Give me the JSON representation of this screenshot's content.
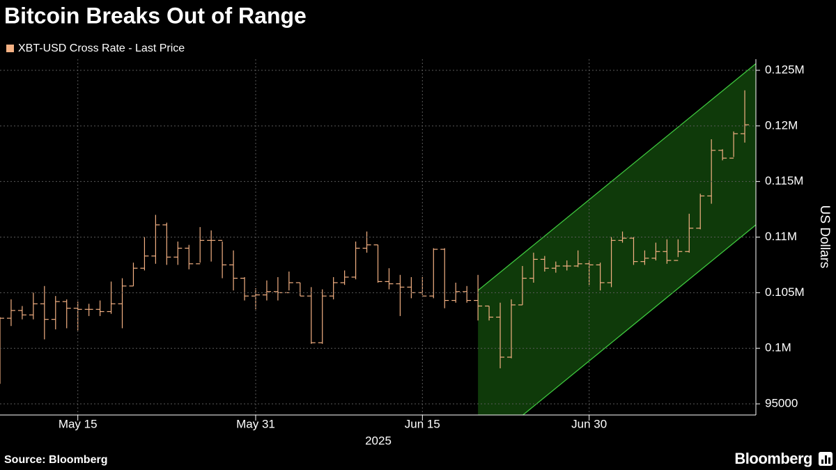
{
  "chart_data": {
    "type": "ohlc",
    "title": "Bitcoin Breaks Out of Range",
    "source": "Source: Bloomberg",
    "brand": "Bloomberg",
    "y_axis_label": "US Dollars",
    "x_year_label": "2025",
    "x": [
      "2025-05-08",
      "2025-05-09",
      "2025-05-10",
      "2025-05-11",
      "2025-05-12",
      "2025-05-13",
      "2025-05-14",
      "2025-05-15",
      "2025-05-16",
      "2025-05-17",
      "2025-05-18",
      "2025-05-19",
      "2025-05-20",
      "2025-05-21",
      "2025-05-22",
      "2025-05-23",
      "2025-05-24",
      "2025-05-25",
      "2025-05-26",
      "2025-05-27",
      "2025-05-28",
      "2025-05-29",
      "2025-05-30",
      "2025-05-31",
      "2025-06-01",
      "2025-06-02",
      "2025-06-03",
      "2025-06-04",
      "2025-06-05",
      "2025-06-06",
      "2025-06-07",
      "2025-06-08",
      "2025-06-09",
      "2025-06-10",
      "2025-06-11",
      "2025-06-12",
      "2025-06-13",
      "2025-06-14",
      "2025-06-15",
      "2025-06-16",
      "2025-06-17",
      "2025-06-18",
      "2025-06-19",
      "2025-06-20",
      "2025-06-21",
      "2025-06-22",
      "2025-06-23",
      "2025-06-24",
      "2025-06-25",
      "2025-06-26",
      "2025-06-27",
      "2025-06-28",
      "2025-06-29",
      "2025-06-30",
      "2025-07-01",
      "2025-07-02",
      "2025-07-03",
      "2025-07-04",
      "2025-07-05",
      "2025-07-06",
      "2025-07-07",
      "2025-07-08",
      "2025-07-09",
      "2025-07-10",
      "2025-07-11",
      "2025-07-12",
      "2025-07-13",
      "2025-07-14"
    ],
    "series": [
      {
        "name": "XBT-USD Cross Rate - Last Price",
        "color": "#f4b183",
        "open": [
          97000,
          102700,
          103400,
          103000,
          104000,
          102600,
          104200,
          103600,
          103500,
          103500,
          103300,
          104000,
          105600,
          107200,
          108300,
          111100,
          108200,
          109000,
          107600,
          109700,
          109700,
          107500,
          106300,
          104700,
          104800,
          105100,
          105000,
          105900,
          104700,
          100500,
          104700,
          105900,
          106400,
          109000,
          109300,
          106000,
          105800,
          105500,
          105000,
          104700,
          108900,
          104300,
          105100,
          104300,
          103800,
          102800,
          99200,
          103900,
          106300,
          108000,
          107200,
          107400,
          107400,
          107600,
          107500,
          105900,
          109700,
          109900,
          107800,
          108100,
          108700,
          107900,
          108700,
          110800,
          113700,
          117800,
          117100,
          119300
        ],
        "high": [
          102800,
          104400,
          103800,
          105000,
          105600,
          104700,
          104400,
          104200,
          104000,
          104300,
          106000,
          106300,
          107700,
          110000,
          112000,
          111300,
          109600,
          109300,
          110900,
          110600,
          109600,
          108800,
          106400,
          105400,
          106100,
          106400,
          106900,
          105900,
          105500,
          105300,
          106400,
          107000,
          109600,
          110500,
          109300,
          107200,
          106600,
          106400,
          106400,
          109000,
          109000,
          105900,
          105600,
          106600,
          103800,
          104100,
          104400,
          107400,
          108600,
          108300,
          107800,
          107900,
          108800,
          107900,
          107700,
          110000,
          110500,
          110000,
          108800,
          109500,
          109800,
          109800,
          112100,
          113900,
          118800,
          117900,
          119500,
          123200
        ],
        "low": [
          96800,
          102000,
          102600,
          102600,
          100800,
          101700,
          101800,
          101600,
          102900,
          102900,
          103100,
          101800,
          105600,
          107000,
          107600,
          107500,
          107500,
          107100,
          107700,
          107800,
          106300,
          105200,
          104300,
          103500,
          104300,
          104300,
          105200,
          104700,
          100400,
          100400,
          104400,
          105700,
          106200,
          108600,
          105900,
          105300,
          102900,
          104500,
          104800,
          104500,
          103600,
          104100,
          104100,
          102500,
          102500,
          98200,
          99100,
          103900,
          105900,
          106900,
          106800,
          107000,
          107300,
          105700,
          105200,
          105500,
          109500,
          107500,
          107500,
          107900,
          107600,
          108200,
          108600,
          110700,
          113000,
          116900,
          117200,
          118500
        ],
        "close": [
          102700,
          103400,
          103000,
          104000,
          102600,
          104200,
          103600,
          103500,
          103500,
          103300,
          104000,
          105600,
          107200,
          108300,
          111100,
          108200,
          109000,
          107600,
          109700,
          109700,
          107500,
          106300,
          104700,
          104800,
          105100,
          105000,
          105900,
          104700,
          100500,
          104700,
          105900,
          106400,
          109000,
          109300,
          106000,
          105800,
          105500,
          105000,
          104700,
          108900,
          104300,
          105100,
          104300,
          103800,
          102800,
          99200,
          103900,
          106300,
          108000,
          107200,
          107400,
          107400,
          107600,
          107500,
          105900,
          109700,
          109900,
          107800,
          108100,
          108700,
          107900,
          108700,
          110800,
          113700,
          117800,
          117100,
          119300,
          120100
        ]
      }
    ],
    "channel": {
      "x": [
        "2025-06-20",
        "2025-07-15"
      ],
      "upper": [
        105200,
        125600
      ],
      "lower": [
        90700,
        111100
      ],
      "color": "#3ec83e",
      "fill": "#0f3a0a"
    },
    "xlim": [
      "2025-05-08",
      "2025-07-15"
    ],
    "xticks": [
      {
        "value": "2025-05-15",
        "label": "May 15"
      },
      {
        "value": "2025-05-31",
        "label": "May 31"
      },
      {
        "value": "2025-06-15",
        "label": "Jun 15"
      },
      {
        "value": "2025-06-30",
        "label": "Jun 30"
      }
    ],
    "ylim": [
      94000,
      126000
    ],
    "yticks": [
      95000,
      {
        "value": 100000,
        "label": "0.1M"
      },
      {
        "value": 105000,
        "label": "0.105M"
      },
      {
        "value": 110000,
        "label": "0.11M"
      },
      {
        "value": 115000,
        "label": "0.115M"
      },
      {
        "value": 120000,
        "label": "0.12M"
      },
      {
        "value": 125000,
        "label": "0.125M"
      }
    ],
    "grid": true
  }
}
